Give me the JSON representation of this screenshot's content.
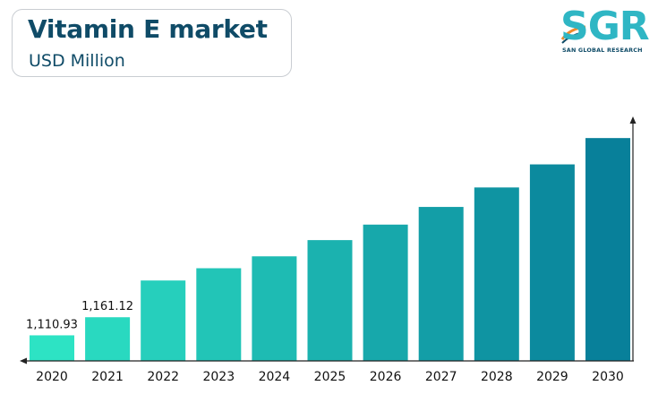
{
  "header": {
    "title": "Vitamin E market",
    "subtitle": "USD Million"
  },
  "logo": {
    "mark": "SGR",
    "tagline": "SAN GLOBAL RESEARCH"
  },
  "colors": {
    "title": "#0f4b67",
    "bar_start": "#2de3c4",
    "bar_end": "#08809a",
    "axis": "#222222"
  },
  "chart_data": {
    "type": "bar",
    "title": "Vitamin E market",
    "ylabel": "",
    "xlabel": "",
    "categories": [
      "2020",
      "2021",
      "2022",
      "2023",
      "2024",
      "2025",
      "2026",
      "2027",
      "2028",
      "2029",
      "2030"
    ],
    "values": [
      1110.93,
      1161.12,
      1263,
      1297,
      1330,
      1375,
      1418,
      1467,
      1521,
      1585,
      1658
    ],
    "data_labels": [
      "1,110.93",
      "1,161.12",
      "",
      "",
      "",
      "",
      "",
      "",
      "",
      "",
      ""
    ],
    "ylim": [
      1040,
      1718
    ],
    "grid": false,
    "legend": "none"
  }
}
